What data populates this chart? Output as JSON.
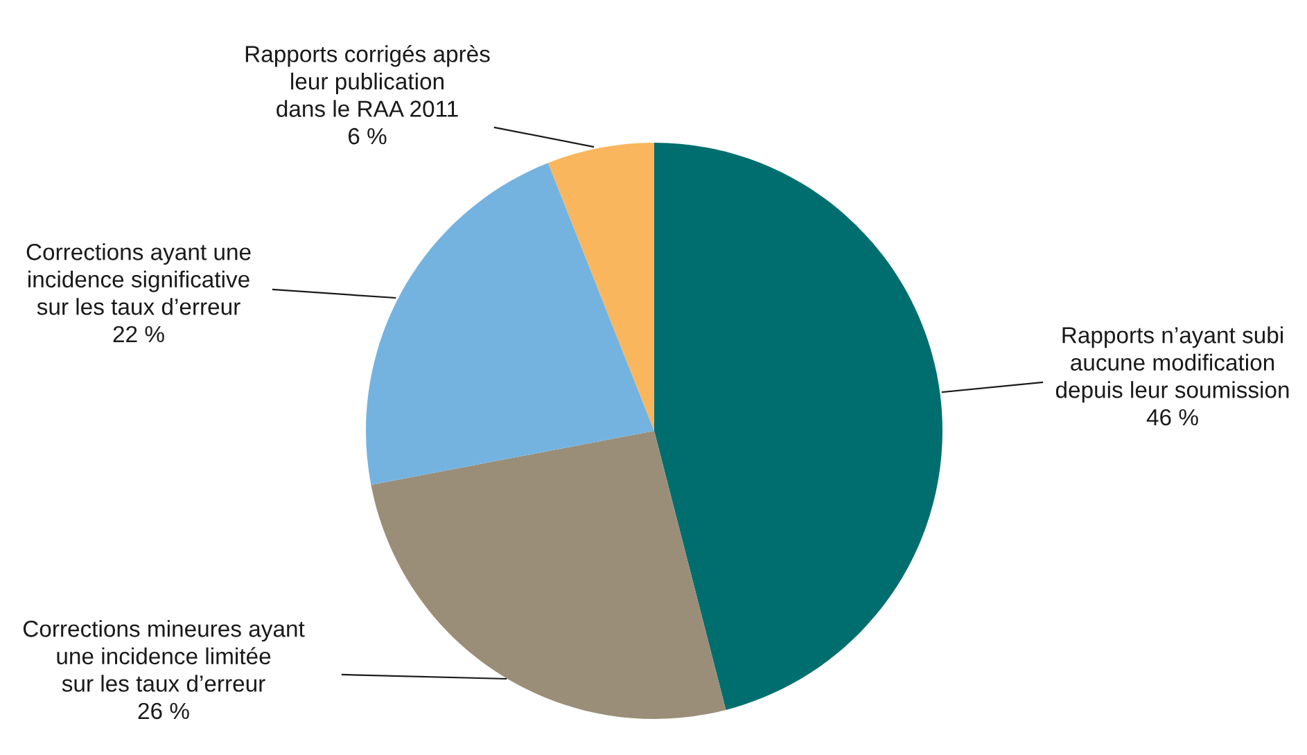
{
  "chart_data": {
    "type": "pie",
    "categories": [
      "Rapports n’ayant subi\naucune modification\ndepuis leur soumission",
      "Corrections mineures ayant\nune incidence limitée\nsur les taux d’erreur",
      "Corrections ayant une\nincidence significative\nsur les taux d’erreur",
      "Rapports corrigés après\nleur publication\ndans le RAA 2011"
    ],
    "values": [
      46,
      26,
      22,
      6
    ],
    "value_labels": [
      "46 %",
      "26 %",
      "22 %",
      "6 %"
    ],
    "colors": [
      "#006e6e",
      "#9a8e78",
      "#74b3e0",
      "#f9b65d"
    ],
    "legend": false
  }
}
